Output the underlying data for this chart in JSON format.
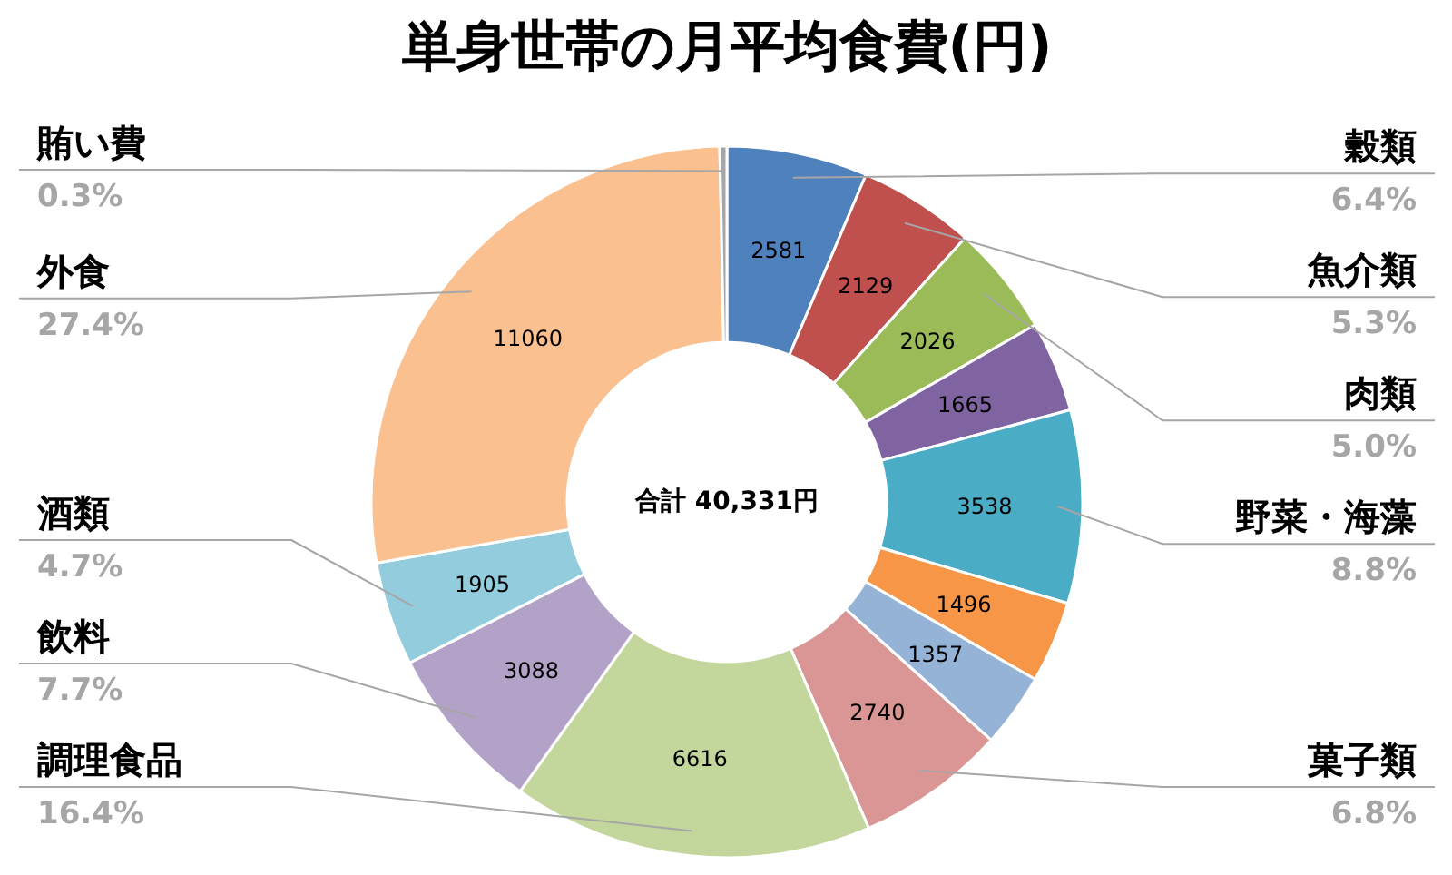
{
  "chart_data": {
    "type": "donut",
    "title": "単身世帯の月平均食費(円)",
    "categories": [
      "穀類",
      "魚介類",
      "肉類",
      null,
      "野菜・海藻",
      null,
      null,
      "菓子類",
      "調理食品",
      "飲料",
      "酒類",
      "外食",
      "賄い費"
    ],
    "values": [
      2581,
      2129,
      2026,
      1665,
      3538,
      1496,
      1357,
      2740,
      6616,
      3088,
      1905,
      11060,
      130
    ],
    "colors": [
      "#4f81bd",
      "#c0504d",
      "#9bbb59",
      "#8064a2",
      "#4bacc6",
      "#f79646",
      "#95b3d7",
      "#d99694",
      "#c3d69b",
      "#b3a2c7",
      "#93cddd",
      "#fac090",
      "#a6a6a6"
    ],
    "value_labels": [
      "2581",
      "2129",
      "2026",
      "1665",
      "3538",
      "1496",
      "1357",
      "2740",
      "6616",
      "3088",
      "1905",
      "11060",
      null
    ],
    "annotations": [
      "合計 40,331円",
      {
        "text": "6.4%",
        "x": "穀類"
      },
      {
        "text": "5.3%",
        "x": "魚介類"
      },
      {
        "text": "5.0%",
        "x": "肉類"
      },
      {
        "text": "8.8%",
        "x": "野菜・海藻"
      },
      {
        "text": "6.8%",
        "x": "菓子類"
      },
      {
        "text": "16.4%",
        "x": "調理食品"
      },
      {
        "text": "7.7%",
        "x": "飲料"
      },
      {
        "text": "4.7%",
        "x": "酒類"
      },
      {
        "text": "27.4%",
        "x": "外食"
      },
      {
        "text": "0.3%",
        "x": "賄い費"
      }
    ]
  }
}
